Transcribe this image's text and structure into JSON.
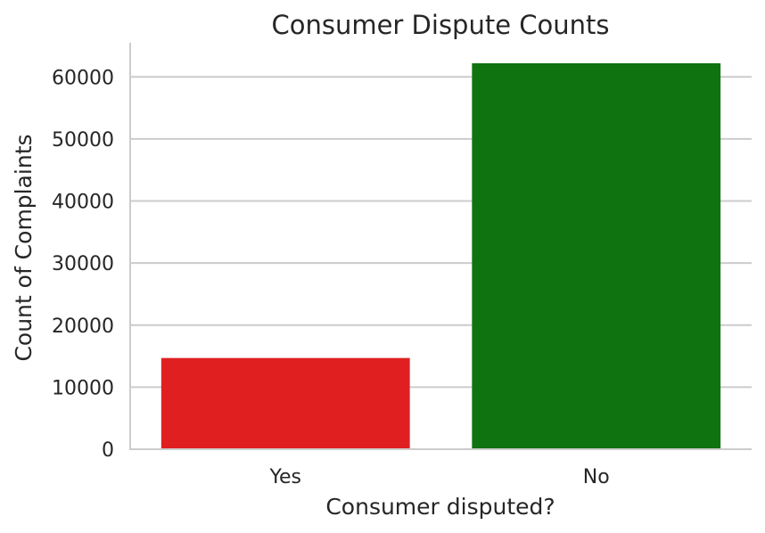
{
  "chart_data": {
    "type": "bar",
    "title": "Consumer Dispute Counts",
    "xlabel": "Consumer disputed?",
    "ylabel": "Count of Complaints",
    "categories": [
      "Yes",
      "No"
    ],
    "values": [
      14700,
      62200
    ],
    "colors": [
      "#e02020",
      "#0f730f"
    ],
    "ylim": [
      0,
      65500
    ],
    "yticks": [
      0,
      10000,
      20000,
      30000,
      40000,
      50000,
      60000
    ],
    "grid": true,
    "grid_color": "#cccccc",
    "axis_color": "#cccccc",
    "text_color": "#262626"
  }
}
